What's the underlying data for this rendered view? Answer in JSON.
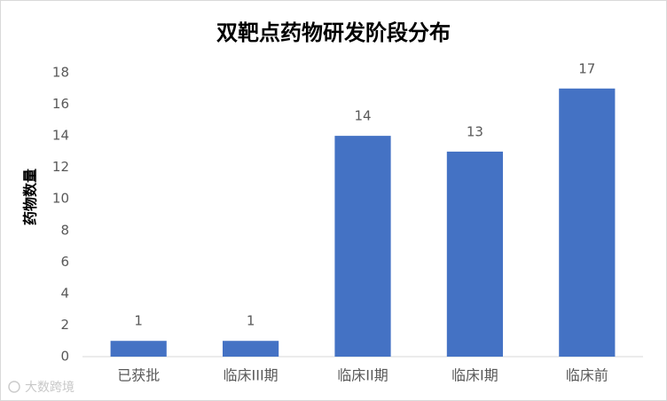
{
  "chart_data": {
    "type": "bar",
    "title": "双靶点药物研发阶段分布",
    "y_label": "药物数量",
    "categories": [
      "已获批",
      "临床III期",
      "临床II期",
      "临床I期",
      "临床前"
    ],
    "values": [
      1,
      1,
      14,
      13,
      17
    ],
    "color": "#4472c4",
    "ylim": [
      0,
      18
    ],
    "yticks": [
      0,
      2,
      4,
      6,
      8,
      10,
      12,
      14,
      16,
      18
    ],
    "grid": false,
    "watermark": "大数跨境"
  }
}
